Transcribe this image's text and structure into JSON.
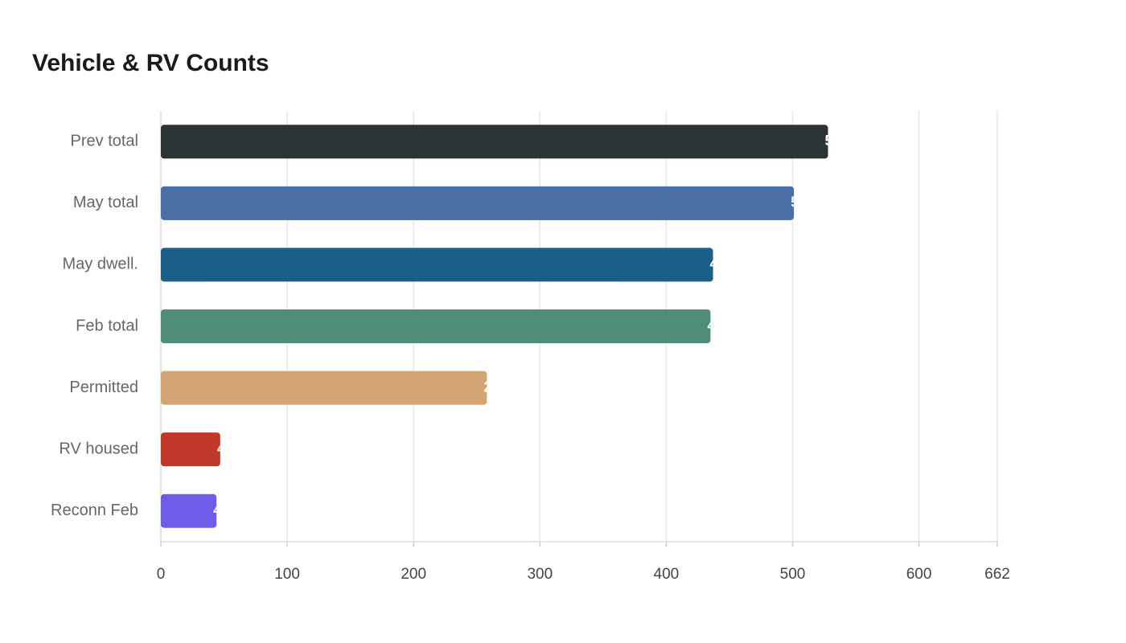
{
  "chart_data": {
    "type": "hbar",
    "title": "Vehicle & RV Counts",
    "categories": [
      "Prev total",
      "May total",
      "May dwell.",
      "Feb total",
      "Permitted",
      "RV housed",
      "Reconn Feb"
    ],
    "values": [
      528,
      501,
      437,
      435,
      258,
      47,
      44
    ],
    "colors": [
      "#2d3436",
      "#4a6fa5",
      "#1b5e87",
      "#4f8c7a",
      "#d4a574",
      "#c0392b",
      "#6c5ce7"
    ],
    "xlim": [
      0,
      662
    ],
    "xticks": [
      0,
      100,
      200,
      300,
      400,
      500,
      600,
      662
    ],
    "grid": true
  }
}
